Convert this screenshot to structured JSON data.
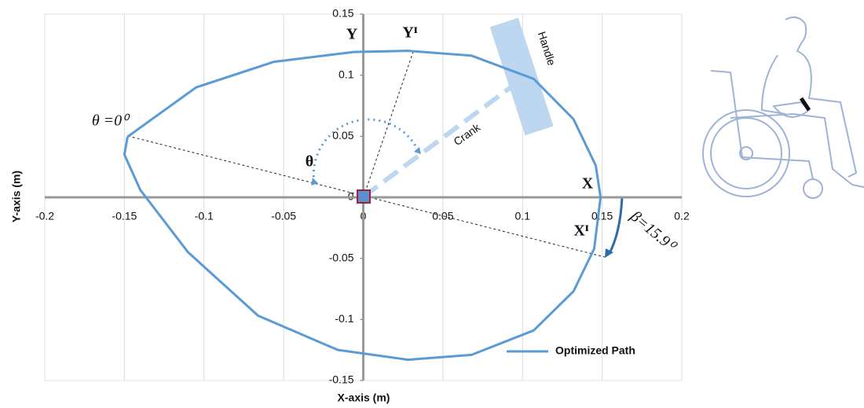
{
  "chart_data": {
    "type": "line",
    "x_label": "X-axis (m)",
    "y_label": "Y-axis (m)",
    "x": [
      -0.148,
      -0.105,
      -0.056,
      -0.006,
      0.028,
      0.068,
      0.107,
      0.132,
      0.146,
      0.149,
      0.145,
      0.132,
      0.107,
      0.068,
      0.028,
      -0.016,
      -0.066,
      -0.11,
      -0.14,
      -0.15,
      -0.148
    ],
    "series": [
      {
        "name": "Optimized Path",
        "color": "#5b9bd5",
        "values": [
          0.0496,
          0.09,
          0.111,
          0.119,
          0.12,
          0.116,
          0.097,
          0.064,
          0.026,
          0,
          -0.042,
          -0.077,
          -0.109,
          -0.129,
          -0.133,
          -0.125,
          -0.097,
          -0.045,
          0.006,
          0.035,
          0.0496
        ]
      }
    ],
    "xlim": [
      -0.2,
      0.2
    ],
    "ylim": [
      -0.15,
      0.15
    ],
    "xticks": [
      -0.2,
      -0.15,
      -0.1,
      -0.05,
      0,
      0.05,
      0.1,
      0.15,
      0.2
    ],
    "yticks": [
      -0.15,
      -0.1,
      -0.05,
      0,
      0.05,
      0.1,
      0.15
    ],
    "grid": true,
    "legend": "lower right",
    "annotations": [
      "Y",
      "Yᴵ",
      "X",
      "Xᴵ",
      "θ =0⁰",
      "θ",
      "Crank",
      "Handle",
      "β=15.9⁰"
    ]
  }
}
